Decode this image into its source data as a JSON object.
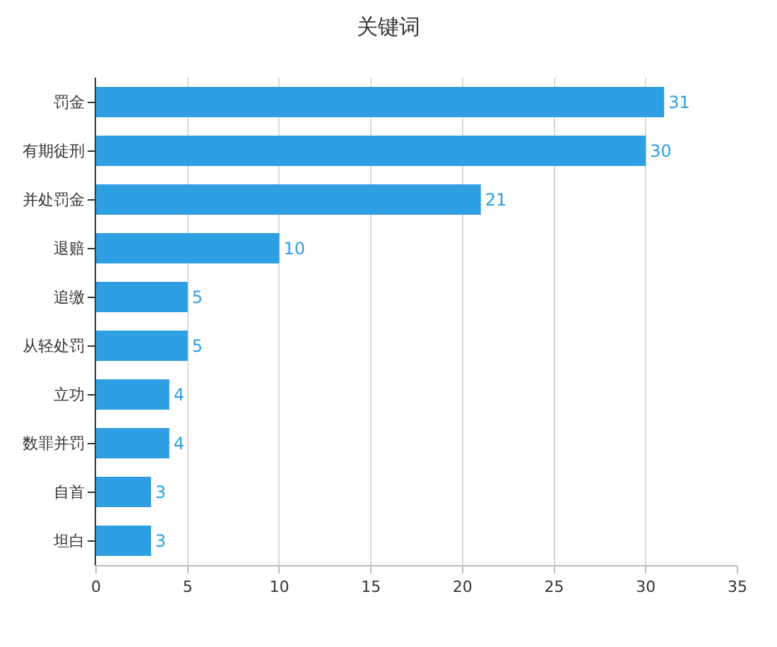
{
  "chart_data": {
    "type": "bar",
    "title": "关键词",
    "orientation": "horizontal",
    "categories": [
      "罚金",
      "有期徒刑",
      "并处罚金",
      "退赔",
      "追缴",
      "从轻处罚",
      "立功",
      "数罪并罚",
      "自首",
      "坦白"
    ],
    "values": [
      31,
      30,
      21,
      10,
      5,
      5,
      4,
      4,
      3,
      3
    ],
    "color": "#2e9fe2",
    "xlim": [
      0,
      35
    ],
    "xticks": [
      0,
      5,
      10,
      15,
      20,
      25,
      30,
      35
    ],
    "grid": "x",
    "legend": false,
    "data_labels": true
  }
}
